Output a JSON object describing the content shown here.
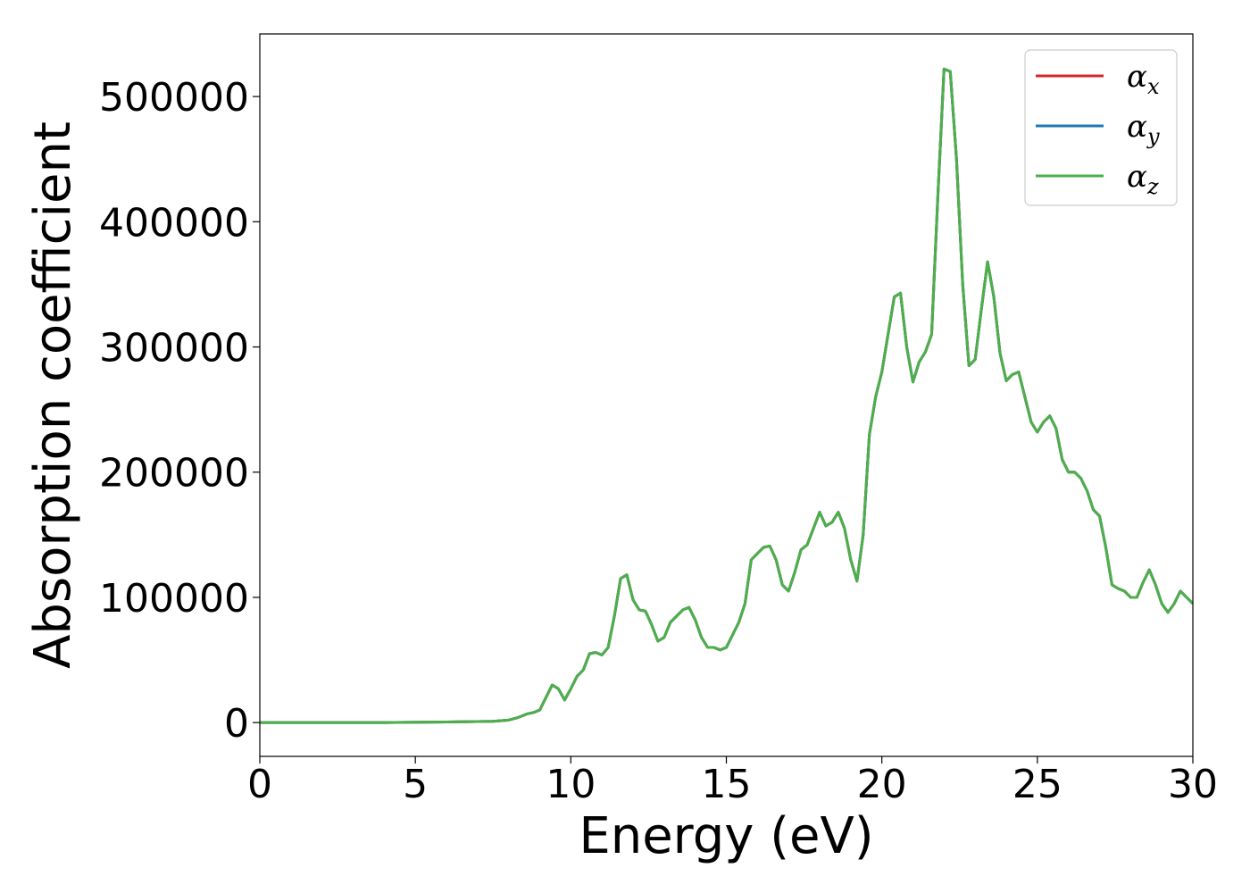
{
  "chart_data": {
    "type": "line",
    "title": "",
    "xlabel": "Energy (eV)",
    "ylabel": "Absorption coefficient",
    "xlim": [
      0,
      30
    ],
    "ylim": [
      -27000,
      550000
    ],
    "xticks": [
      0,
      5,
      10,
      15,
      20,
      25,
      30
    ],
    "yticks": [
      0,
      100000,
      200000,
      300000,
      400000,
      500000
    ],
    "grid": false,
    "legend_position": "top-right",
    "x": [
      0,
      2,
      4,
      6,
      7,
      7.5,
      8,
      8.3,
      8.6,
      8.8,
      9.0,
      9.2,
      9.4,
      9.6,
      9.8,
      10.0,
      10.2,
      10.4,
      10.6,
      10.8,
      11.0,
      11.2,
      11.4,
      11.6,
      11.8,
      12.0,
      12.2,
      12.4,
      12.6,
      12.8,
      13.0,
      13.2,
      13.4,
      13.6,
      13.8,
      14.0,
      14.2,
      14.4,
      14.6,
      14.8,
      15.0,
      15.2,
      15.4,
      15.6,
      15.8,
      16.0,
      16.2,
      16.4,
      16.6,
      16.8,
      17.0,
      17.2,
      17.4,
      17.6,
      17.8,
      18.0,
      18.2,
      18.4,
      18.6,
      18.8,
      19.0,
      19.2,
      19.4,
      19.6,
      19.8,
      20.0,
      20.2,
      20.4,
      20.6,
      20.8,
      21.0,
      21.2,
      21.4,
      21.6,
      21.8,
      22.0,
      22.2,
      22.4,
      22.6,
      22.8,
      23.0,
      23.2,
      23.4,
      23.6,
      23.8,
      24.0,
      24.2,
      24.4,
      24.6,
      24.8,
      25.0,
      25.2,
      25.4,
      25.6,
      25.8,
      26.0,
      26.2,
      26.4,
      26.6,
      26.8,
      27.0,
      27.2,
      27.4,
      27.6,
      27.8,
      28.0,
      28.2,
      28.4,
      28.6,
      28.8,
      29.0,
      29.2,
      29.4,
      29.6,
      29.8,
      30.0
    ],
    "series": [
      {
        "name": "αx",
        "label_main": "α",
        "label_sub": "x",
        "color": "#d62728",
        "values": [
          0,
          0,
          0,
          500,
          800,
          1000,
          2000,
          4000,
          7000,
          8000,
          10000,
          20000,
          30000,
          27000,
          18000,
          27000,
          37000,
          42000,
          55000,
          56000,
          54000,
          60000,
          85000,
          115000,
          118000,
          98000,
          90000,
          89000,
          78000,
          65000,
          68000,
          80000,
          85000,
          90000,
          92000,
          82000,
          68000,
          60000,
          60000,
          58000,
          60000,
          70000,
          80000,
          95000,
          130000,
          135000,
          140000,
          141000,
          130000,
          110000,
          105000,
          120000,
          138000,
          142000,
          155000,
          168000,
          157000,
          160000,
          168000,
          155000,
          130000,
          113000,
          150000,
          230000,
          260000,
          280000,
          310000,
          340000,
          343000,
          300000,
          272000,
          288000,
          296000,
          310000,
          420000,
          522000,
          520000,
          450000,
          350000,
          285000,
          290000,
          330000,
          368000,
          340000,
          295000,
          273000,
          278000,
          280000,
          260000,
          240000,
          232000,
          240000,
          245000,
          235000,
          210000,
          200000,
          200000,
          195000,
          185000,
          170000,
          165000,
          140000,
          110000,
          107000,
          105000,
          100000,
          100000,
          112000,
          122000,
          110000,
          95000,
          88000,
          95000,
          105000,
          100000,
          95000
        ]
      },
      {
        "name": "αy",
        "label_main": "α",
        "label_sub": "y",
        "color": "#1f77b4",
        "values": [
          0,
          0,
          0,
          500,
          800,
          1000,
          2000,
          4000,
          7000,
          8000,
          10000,
          20000,
          30000,
          27000,
          18000,
          27000,
          37000,
          42000,
          55000,
          56000,
          54000,
          60000,
          85000,
          115000,
          118000,
          98000,
          90000,
          89000,
          78000,
          65000,
          68000,
          80000,
          85000,
          90000,
          92000,
          82000,
          68000,
          60000,
          60000,
          58000,
          60000,
          70000,
          80000,
          95000,
          130000,
          135000,
          140000,
          141000,
          130000,
          110000,
          105000,
          120000,
          138000,
          142000,
          155000,
          168000,
          157000,
          160000,
          168000,
          155000,
          130000,
          113000,
          150000,
          230000,
          260000,
          280000,
          310000,
          340000,
          343000,
          300000,
          272000,
          288000,
          296000,
          310000,
          420000,
          522000,
          520000,
          450000,
          350000,
          285000,
          290000,
          330000,
          368000,
          340000,
          295000,
          273000,
          278000,
          280000,
          260000,
          240000,
          232000,
          240000,
          245000,
          235000,
          210000,
          200000,
          200000,
          195000,
          185000,
          170000,
          165000,
          140000,
          110000,
          107000,
          105000,
          100000,
          100000,
          112000,
          122000,
          110000,
          95000,
          88000,
          95000,
          105000,
          100000,
          95000
        ]
      },
      {
        "name": "αz",
        "label_main": "α",
        "label_sub": "z",
        "color": "#4daf4a",
        "values": [
          0,
          0,
          0,
          500,
          800,
          1000,
          2000,
          4000,
          7000,
          8000,
          10000,
          20000,
          30000,
          27000,
          18000,
          27000,
          37000,
          42000,
          55000,
          56000,
          54000,
          60000,
          85000,
          115000,
          118000,
          98000,
          90000,
          89000,
          78000,
          65000,
          68000,
          80000,
          85000,
          90000,
          92000,
          82000,
          68000,
          60000,
          60000,
          58000,
          60000,
          70000,
          80000,
          95000,
          130000,
          135000,
          140000,
          141000,
          130000,
          110000,
          105000,
          120000,
          138000,
          142000,
          155000,
          168000,
          157000,
          160000,
          168000,
          155000,
          130000,
          113000,
          150000,
          230000,
          260000,
          280000,
          310000,
          340000,
          343000,
          300000,
          272000,
          288000,
          296000,
          310000,
          420000,
          522000,
          520000,
          450000,
          350000,
          285000,
          290000,
          330000,
          368000,
          340000,
          295000,
          273000,
          278000,
          280000,
          260000,
          240000,
          232000,
          240000,
          245000,
          235000,
          210000,
          200000,
          200000,
          195000,
          185000,
          170000,
          165000,
          140000,
          110000,
          107000,
          105000,
          100000,
          100000,
          112000,
          122000,
          110000,
          95000,
          88000,
          95000,
          105000,
          100000,
          95000
        ]
      }
    ]
  }
}
